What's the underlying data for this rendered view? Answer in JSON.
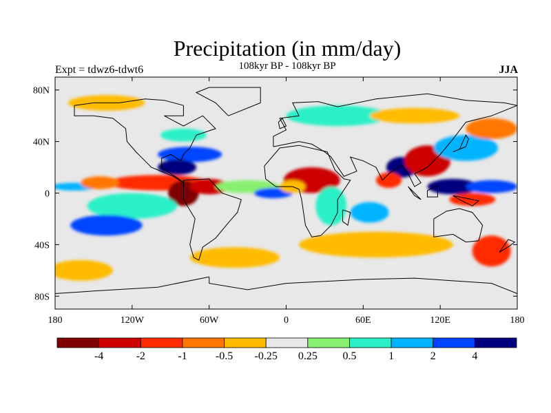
{
  "chart_data": {
    "type": "heatmap",
    "title": "Precipitation (in mm/day)",
    "subtitle": "108kyr BP - 108kyr BP",
    "left_string": "Expt = tdwz6-tdwt6",
    "right_string": "JJA",
    "x_axis": {
      "range": [
        -180,
        180
      ],
      "ticks": [
        -180,
        -120,
        -60,
        0,
        60,
        120,
        180
      ],
      "tick_labels": [
        "180",
        "120W",
        "60W",
        "0",
        "60E",
        "120E",
        "180"
      ]
    },
    "y_axis": {
      "range": [
        -90,
        90
      ],
      "ticks": [
        80,
        40,
        0,
        -40,
        -80
      ],
      "tick_labels": [
        "80N",
        "40N",
        "0",
        "40S",
        "80S"
      ]
    },
    "colorbar": {
      "colors": [
        "#7f0000",
        "#cc0000",
        "#ff2a00",
        "#ff7700",
        "#ffbb00",
        "#e8e8e8",
        "#88f070",
        "#2af0c8",
        "#00b4ff",
        "#0044ff",
        "#00007f"
      ],
      "labels": [
        "-4",
        "-2",
        "-1",
        "-0.5",
        "-0.25",
        "0.25",
        "0.5",
        "1",
        "2",
        "4"
      ]
    },
    "background_color": "#e8e8e8",
    "anomalies": [
      {
        "lon": -100,
        "lat": 8,
        "rx": 40,
        "ry": 6,
        "level": 2
      },
      {
        "lon": -80,
        "lat": 0,
        "rx": 12,
        "ry": 10,
        "level": 0
      },
      {
        "lon": -60,
        "lat": 5,
        "rx": 15,
        "ry": 6,
        "level": 1
      },
      {
        "lon": -165,
        "lat": 5,
        "rx": 18,
        "ry": 3,
        "level": 8
      },
      {
        "lon": -145,
        "lat": 8,
        "rx": 15,
        "ry": 5,
        "level": 3
      },
      {
        "lon": -120,
        "lat": -10,
        "rx": 35,
        "ry": 10,
        "level": 7
      },
      {
        "lon": -140,
        "lat": -25,
        "rx": 28,
        "ry": 8,
        "level": 9
      },
      {
        "lon": -75,
        "lat": 30,
        "rx": 25,
        "ry": 6,
        "level": 9
      },
      {
        "lon": -85,
        "lat": 20,
        "rx": 15,
        "ry": 6,
        "level": 10
      },
      {
        "lon": -80,
        "lat": 45,
        "rx": 18,
        "ry": 5,
        "level": 7
      },
      {
        "lon": -30,
        "lat": 5,
        "rx": 25,
        "ry": 5,
        "level": 6
      },
      {
        "lon": -10,
        "lat": 0,
        "rx": 15,
        "ry": 4,
        "level": 9
      },
      {
        "lon": 20,
        "lat": 10,
        "rx": 22,
        "ry": 10,
        "level": 1
      },
      {
        "lon": 5,
        "lat": 5,
        "rx": 10,
        "ry": 5,
        "level": 4
      },
      {
        "lon": 35,
        "lat": -10,
        "rx": 12,
        "ry": 15,
        "level": 7
      },
      {
        "lon": 65,
        "lat": -15,
        "rx": 15,
        "ry": 8,
        "level": 8
      },
      {
        "lon": 90,
        "lat": 20,
        "rx": 12,
        "ry": 8,
        "level": 10
      },
      {
        "lon": 110,
        "lat": 25,
        "rx": 18,
        "ry": 12,
        "level": 1
      },
      {
        "lon": 80,
        "lat": 10,
        "rx": 10,
        "ry": 6,
        "level": 2
      },
      {
        "lon": 130,
        "lat": 5,
        "rx": 20,
        "ry": 6,
        "level": 10
      },
      {
        "lon": 160,
        "lat": 5,
        "rx": 20,
        "ry": 5,
        "level": 9
      },
      {
        "lon": 145,
        "lat": -5,
        "rx": 18,
        "ry": 5,
        "level": 2
      },
      {
        "lon": 140,
        "lat": 35,
        "rx": 25,
        "ry": 10,
        "level": 8
      },
      {
        "lon": 160,
        "lat": 50,
        "rx": 20,
        "ry": 8,
        "level": 3
      },
      {
        "lon": 70,
        "lat": -40,
        "rx": 60,
        "ry": 10,
        "level": 4
      },
      {
        "lon": -40,
        "lat": -50,
        "rx": 35,
        "ry": 8,
        "level": 4
      },
      {
        "lon": -160,
        "lat": -60,
        "rx": 25,
        "ry": 8,
        "level": 4
      },
      {
        "lon": 160,
        "lat": -45,
        "rx": 15,
        "ry": 12,
        "level": 2
      },
      {
        "lon": 40,
        "lat": 60,
        "rx": 40,
        "ry": 8,
        "level": 7
      },
      {
        "lon": -140,
        "lat": 70,
        "rx": 30,
        "ry": 6,
        "level": 4
      },
      {
        "lon": 100,
        "lat": 60,
        "rx": 35,
        "ry": 6,
        "level": 4
      }
    ],
    "coastlines": [
      [
        [
          -165,
          68
        ],
        [
          -150,
          70
        ],
        [
          -130,
          70
        ],
        [
          -110,
          73
        ],
        [
          -95,
          72
        ],
        [
          -80,
          68
        ],
        [
          -80,
          60
        ],
        [
          -95,
          60
        ],
        [
          -80,
          52
        ],
        [
          -65,
          60
        ],
        [
          -55,
          50
        ],
        [
          -70,
          45
        ],
        [
          -75,
          35
        ],
        [
          -80,
          30
        ],
        [
          -82,
          25
        ],
        [
          -90,
          30
        ],
        [
          -97,
          27
        ],
        [
          -97,
          20
        ],
        [
          -90,
          15
        ],
        [
          -85,
          12
        ],
        [
          -80,
          8
        ],
        [
          -88,
          13
        ],
        [
          -105,
          20
        ],
        [
          -110,
          25
        ],
        [
          -117,
          32
        ],
        [
          -124,
          40
        ],
        [
          -125,
          50
        ],
        [
          -135,
          58
        ],
        [
          -150,
          60
        ],
        [
          -165,
          60
        ],
        [
          -165,
          68
        ]
      ],
      [
        [
          -80,
          10
        ],
        [
          -60,
          11
        ],
        [
          -50,
          0
        ],
        [
          -35,
          -5
        ],
        [
          -38,
          -15
        ],
        [
          -45,
          -23
        ],
        [
          -55,
          -35
        ],
        [
          -65,
          -42
        ],
        [
          -68,
          -52
        ],
        [
          -72,
          -50
        ],
        [
          -75,
          -40
        ],
        [
          -71,
          -20
        ],
        [
          -80,
          -5
        ],
        [
          -80,
          10
        ]
      ],
      [
        [
          -10,
          36
        ],
        [
          -10,
          44
        ],
        [
          0,
          49
        ],
        [
          -5,
          58
        ],
        [
          10,
          60
        ],
        [
          5,
          70
        ],
        [
          25,
          71
        ],
        [
          40,
          67
        ],
        [
          70,
          73
        ],
        [
          110,
          77
        ],
        [
          140,
          72
        ],
        [
          170,
          70
        ],
        [
          180,
          68
        ],
        [
          160,
          60
        ],
        [
          140,
          55
        ],
        [
          130,
          42
        ],
        [
          120,
          30
        ],
        [
          110,
          20
        ],
        [
          100,
          15
        ],
        [
          105,
          8
        ],
        [
          100,
          5
        ],
        [
          95,
          15
        ],
        [
          90,
          22
        ],
        [
          80,
          15
        ],
        [
          75,
          10
        ],
        [
          70,
          20
        ],
        [
          60,
          25
        ],
        [
          50,
          28
        ],
        [
          55,
          17
        ],
        [
          45,
          13
        ],
        [
          35,
          28
        ],
        [
          30,
          32
        ],
        [
          20,
          38
        ],
        [
          10,
          40
        ],
        [
          -10,
          36
        ]
      ],
      [
        [
          -17,
          21
        ],
        [
          -16,
          11
        ],
        [
          -8,
          5
        ],
        [
          5,
          5
        ],
        [
          10,
          3
        ],
        [
          12,
          -5
        ],
        [
          15,
          -25
        ],
        [
          20,
          -34
        ],
        [
          27,
          -33
        ],
        [
          35,
          -25
        ],
        [
          40,
          -15
        ],
        [
          40,
          -5
        ],
        [
          50,
          10
        ],
        [
          45,
          11
        ],
        [
          38,
          18
        ],
        [
          32,
          32
        ],
        [
          10,
          37
        ],
        [
          -5,
          35
        ],
        [
          -17,
          21
        ]
      ],
      [
        [
          115,
          -20
        ],
        [
          115,
          -34
        ],
        [
          130,
          -32
        ],
        [
          140,
          -38
        ],
        [
          150,
          -37
        ],
        [
          153,
          -25
        ],
        [
          145,
          -15
        ],
        [
          135,
          -12
        ],
        [
          125,
          -14
        ],
        [
          115,
          -20
        ]
      ],
      [
        [
          -45,
          60
        ],
        [
          -20,
          70
        ],
        [
          -20,
          82
        ],
        [
          -60,
          82
        ],
        [
          -70,
          78
        ],
        [
          -55,
          70
        ],
        [
          -45,
          60
        ]
      ],
      [
        [
          95,
          5
        ],
        [
          105,
          -5
        ],
        [
          100,
          -2
        ],
        [
          95,
          5
        ]
      ],
      [
        [
          110,
          2
        ],
        [
          118,
          6
        ],
        [
          118,
          -3
        ],
        [
          110,
          -3
        ],
        [
          110,
          2
        ]
      ],
      [
        [
          130,
          -2
        ],
        [
          150,
          -6
        ],
        [
          145,
          -10
        ],
        [
          135,
          -5
        ],
        [
          130,
          -2
        ]
      ],
      [
        [
          130,
          32
        ],
        [
          140,
          36
        ],
        [
          142,
          42
        ],
        [
          140,
          45
        ],
        [
          135,
          34
        ],
        [
          130,
          32
        ]
      ],
      [
        [
          -180,
          -78
        ],
        [
          -150,
          -76
        ],
        [
          -100,
          -73
        ],
        [
          -60,
          -65
        ],
        [
          -60,
          -70
        ],
        [
          -30,
          -75
        ],
        [
          0,
          -70
        ],
        [
          60,
          -67
        ],
        [
          100,
          -66
        ],
        [
          160,
          -70
        ],
        [
          180,
          -78
        ]
      ],
      [
        [
          44,
          -13
        ],
        [
          50,
          -15
        ],
        [
          48,
          -25
        ],
        [
          44,
          -22
        ],
        [
          44,
          -13
        ]
      ],
      [
        [
          -5,
          50
        ],
        [
          0,
          52
        ],
        [
          -3,
          58
        ],
        [
          -6,
          55
        ],
        [
          -5,
          50
        ]
      ],
      [
        [
          166,
          -46
        ],
        [
          174,
          -41
        ],
        [
          178,
          -38
        ],
        [
          173,
          -36
        ],
        [
          166,
          -46
        ]
      ]
    ]
  }
}
